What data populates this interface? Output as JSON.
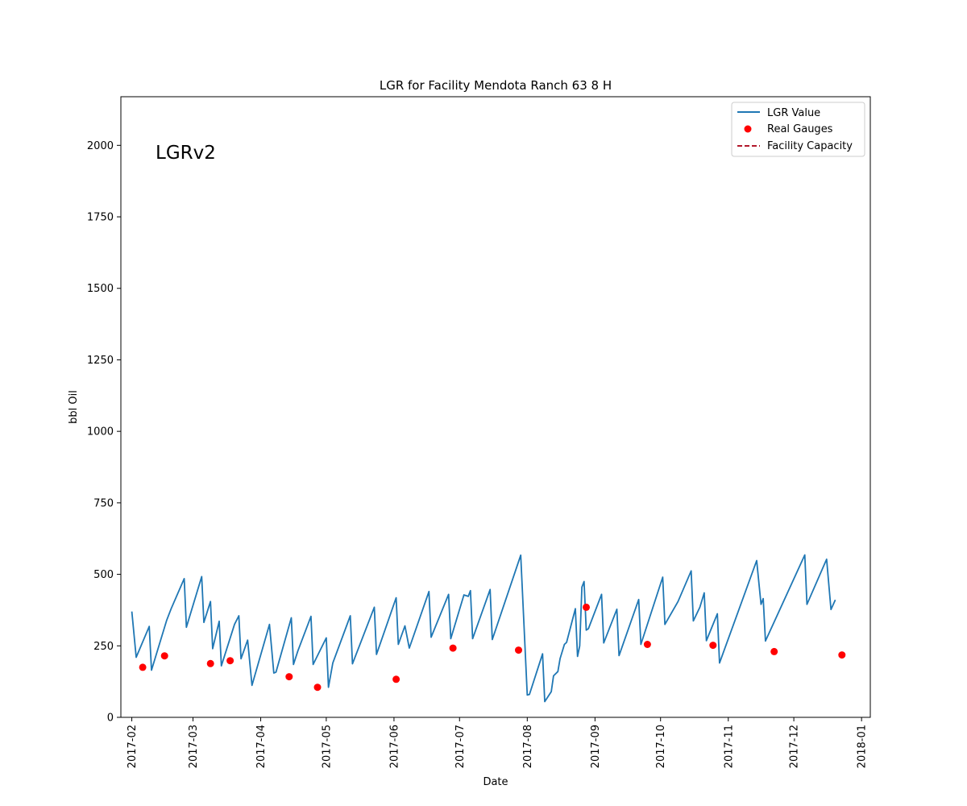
{
  "chart_data": {
    "type": "line",
    "title": "LGR for Facility Mendota Ranch 63 8 H",
    "xlabel": "Date",
    "ylabel": "bbl Oil",
    "annotation": "LGRv2",
    "xlim": [
      "2017-01-27",
      "2018-01-05"
    ],
    "ylim": [
      0,
      2170
    ],
    "grid": false,
    "legend_position": "top-right",
    "x_ticks": [
      "2017-02",
      "2017-03",
      "2017-04",
      "2017-05",
      "2017-06",
      "2017-07",
      "2017-08",
      "2017-09",
      "2017-10",
      "2017-11",
      "2017-12",
      "2018-01"
    ],
    "y_ticks": [
      0,
      250,
      500,
      750,
      1000,
      1250,
      1500,
      1750,
      2000
    ],
    "series": [
      {
        "name": "LGR Value",
        "kind": "line",
        "color": "#1f77b4",
        "x": [
          "2017-02-01",
          "2017-02-03",
          "2017-02-09",
          "2017-02-10",
          "2017-02-17",
          "2017-02-19",
          "2017-02-25",
          "2017-02-26",
          "2017-03-05",
          "2017-03-06",
          "2017-03-09",
          "2017-03-10",
          "2017-03-13",
          "2017-03-14",
          "2017-03-20",
          "2017-03-22",
          "2017-03-23",
          "2017-03-26",
          "2017-03-28",
          "2017-04-05",
          "2017-04-07",
          "2017-04-08",
          "2017-04-15",
          "2017-04-16",
          "2017-04-18",
          "2017-04-24",
          "2017-04-25",
          "2017-05-01",
          "2017-05-02",
          "2017-05-04",
          "2017-05-12",
          "2017-05-13",
          "2017-05-23",
          "2017-05-24",
          "2017-06-02",
          "2017-06-03",
          "2017-06-06",
          "2017-06-08",
          "2017-06-17",
          "2017-06-18",
          "2017-06-26",
          "2017-06-27",
          "2017-07-03",
          "2017-07-05",
          "2017-07-06",
          "2017-07-07",
          "2017-07-15",
          "2017-07-16",
          "2017-07-29",
          "2017-08-01",
          "2017-08-02",
          "2017-08-08",
          "2017-08-09",
          "2017-08-12",
          "2017-08-13",
          "2017-08-15",
          "2017-08-16",
          "2017-08-18",
          "2017-08-19",
          "2017-08-23",
          "2017-08-24",
          "2017-08-25",
          "2017-08-26",
          "2017-08-27",
          "2017-08-28",
          "2017-08-29",
          "2017-09-04",
          "2017-09-05",
          "2017-09-11",
          "2017-09-12",
          "2017-09-21",
          "2017-09-22",
          "2017-10-02",
          "2017-10-03",
          "2017-10-09",
          "2017-10-15",
          "2017-10-16",
          "2017-10-19",
          "2017-10-21",
          "2017-10-22",
          "2017-10-27",
          "2017-10-28",
          "2017-11-14",
          "2017-11-16",
          "2017-11-17",
          "2017-11-18",
          "2017-12-06",
          "2017-12-07",
          "2017-12-16",
          "2017-12-18",
          "2017-12-20"
        ],
        "y": [
          370,
          210,
          318,
          165,
          340,
          380,
          485,
          315,
          492,
          332,
          405,
          240,
          336,
          180,
          325,
          355,
          205,
          270,
          112,
          325,
          155,
          158,
          348,
          185,
          232,
          353,
          185,
          278,
          105,
          190,
          355,
          187,
          385,
          220,
          418,
          255,
          320,
          242,
          440,
          280,
          430,
          275,
          428,
          423,
          443,
          275,
          447,
          272,
          567,
          78,
          80,
          222,
          55,
          90,
          145,
          160,
          205,
          255,
          262,
          380,
          213,
          250,
          455,
          475,
          305,
          310,
          430,
          260,
          378,
          216,
          412,
          255,
          490,
          325,
          405,
          512,
          337,
          385,
          435,
          268,
          362,
          190,
          548,
          395,
          415,
          267,
          568,
          395,
          553,
          377,
          411
        ]
      },
      {
        "name": "Real Gauges",
        "kind": "scatter",
        "color": "#ff0000",
        "x": [
          "2017-02-06",
          "2017-02-16",
          "2017-03-09",
          "2017-03-18",
          "2017-04-14",
          "2017-04-27",
          "2017-06-02",
          "2017-06-28",
          "2017-07-28",
          "2017-08-28",
          "2017-09-25",
          "2017-10-25",
          "2017-11-22",
          "2017-12-23"
        ],
        "y": [
          175,
          215,
          188,
          198,
          142,
          105,
          133,
          242,
          235,
          385,
          255,
          252,
          230,
          218
        ]
      },
      {
        "name": "Facility Capacity",
        "kind": "dashed-line",
        "color": "#b2182b",
        "x": [],
        "y": []
      }
    ]
  }
}
